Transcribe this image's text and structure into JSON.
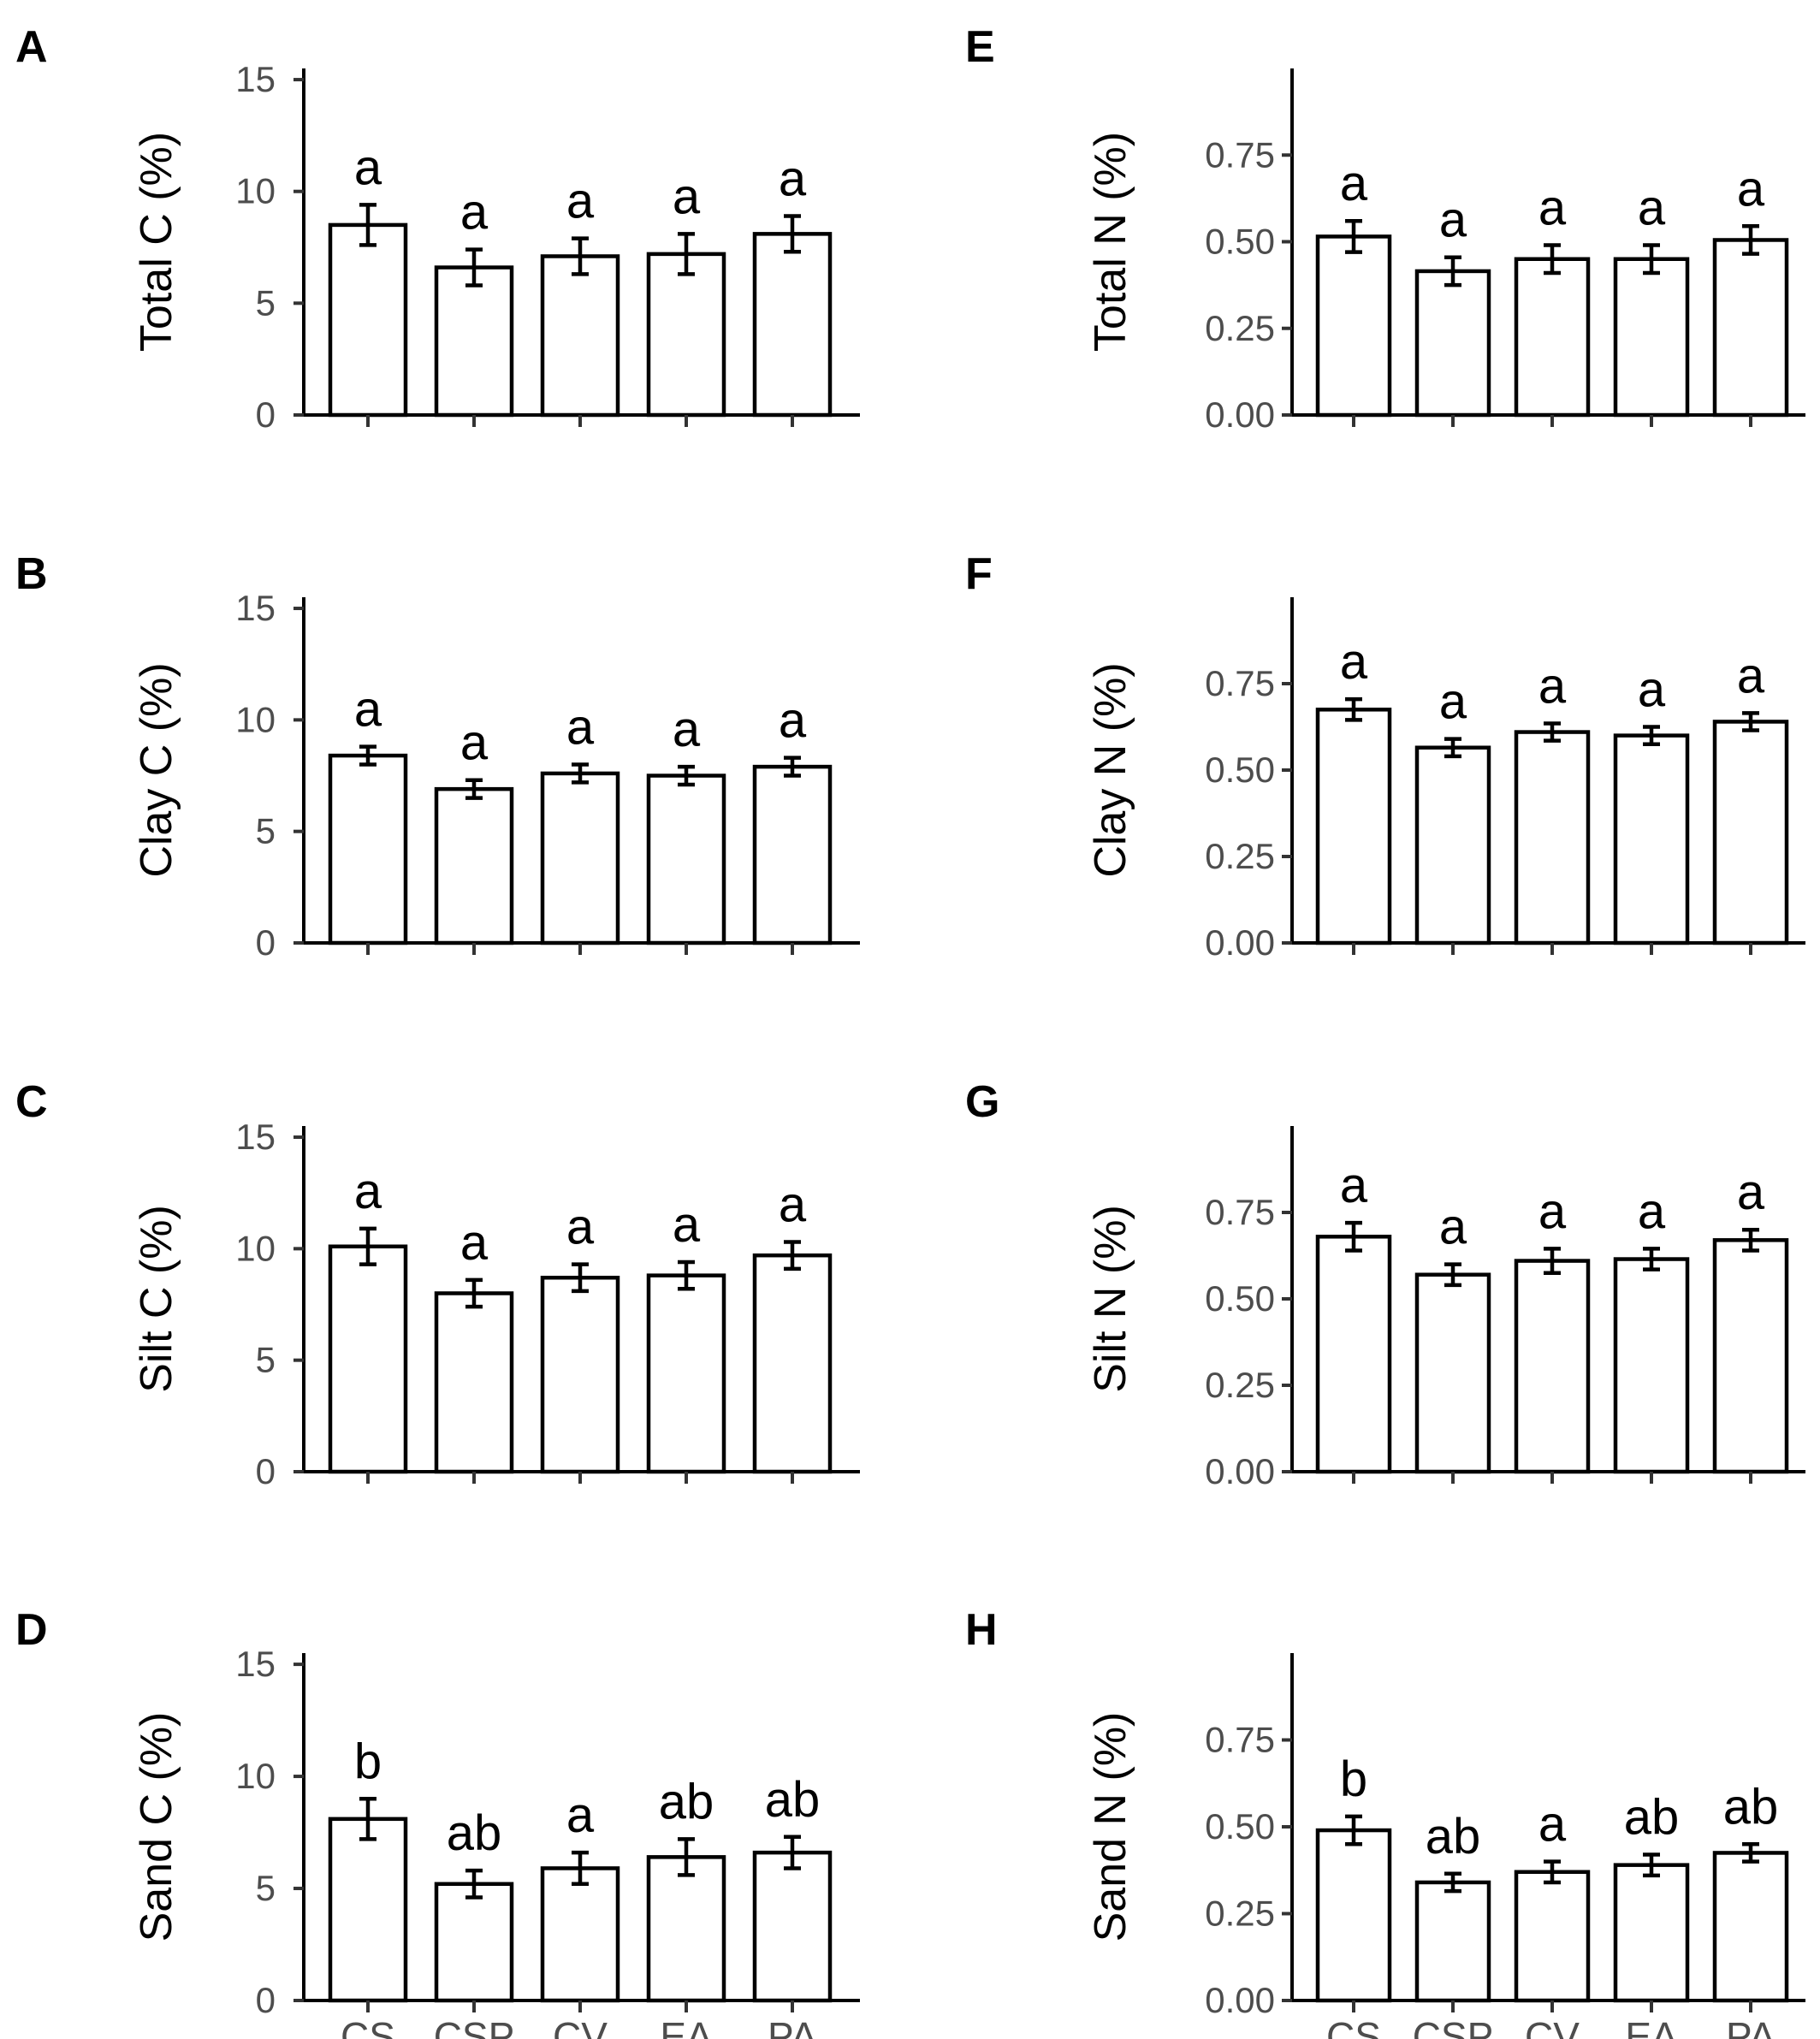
{
  "figure": {
    "colors": {
      "bar_fill": "#ffffff",
      "bar_stroke": "#000000",
      "axis": "#000000",
      "tick_text": "#4d4d4d"
    }
  },
  "chart_data": [
    {
      "panel": "A",
      "type": "bar",
      "ylabel": "Total C (%)",
      "categories": [
        "CS",
        "CSP",
        "CV",
        "EA",
        "PA"
      ],
      "show_x_labels": false,
      "values": [
        8.5,
        6.6,
        7.1,
        7.2,
        8.1
      ],
      "errors": [
        0.9,
        0.8,
        0.8,
        0.9,
        0.8
      ],
      "letters": [
        "a",
        "a",
        "a",
        "a",
        "a"
      ],
      "ylim": [
        0,
        15.5
      ],
      "yticks": [
        0,
        5,
        10,
        15
      ],
      "ytick_labels": [
        "0",
        "5",
        "10",
        "15"
      ]
    },
    {
      "panel": "B",
      "type": "bar",
      "ylabel": "Clay C (%)",
      "categories": [
        "CS",
        "CSP",
        "CV",
        "EA",
        "PA"
      ],
      "show_x_labels": false,
      "values": [
        8.4,
        6.9,
        7.6,
        7.5,
        7.9
      ],
      "errors": [
        0.4,
        0.4,
        0.4,
        0.4,
        0.4
      ],
      "letters": [
        "a",
        "a",
        "a",
        "a",
        "a"
      ],
      "ylim": [
        0,
        15.5
      ],
      "yticks": [
        0,
        5,
        10,
        15
      ],
      "ytick_labels": [
        "0",
        "5",
        "10",
        "15"
      ]
    },
    {
      "panel": "C",
      "type": "bar",
      "ylabel": "Silt C (%)",
      "categories": [
        "CS",
        "CSP",
        "CV",
        "EA",
        "PA"
      ],
      "show_x_labels": false,
      "values": [
        10.1,
        8.0,
        8.7,
        8.8,
        9.7
      ],
      "errors": [
        0.8,
        0.6,
        0.6,
        0.6,
        0.6
      ],
      "letters": [
        "a",
        "a",
        "a",
        "a",
        "a"
      ],
      "ylim": [
        0,
        15.5
      ],
      "yticks": [
        0,
        5,
        10,
        15
      ],
      "ytick_labels": [
        "0",
        "5",
        "10",
        "15"
      ]
    },
    {
      "panel": "D",
      "type": "bar",
      "ylabel": "Sand C (%)",
      "categories": [
        "CS",
        "CSP",
        "CV",
        "EA",
        "PA"
      ],
      "show_x_labels": true,
      "values": [
        8.1,
        5.2,
        5.9,
        6.4,
        6.6
      ],
      "errors": [
        0.9,
        0.6,
        0.7,
        0.8,
        0.7
      ],
      "letters": [
        "b",
        "ab",
        "a",
        "ab",
        "ab"
      ],
      "ylim": [
        0,
        15.5
      ],
      "yticks": [
        0,
        5,
        10,
        15
      ],
      "ytick_labels": [
        "0",
        "5",
        "10",
        "15"
      ]
    },
    {
      "panel": "E",
      "type": "bar",
      "ylabel": "Total N (%)",
      "categories": [
        "CS",
        "CSP",
        "CV",
        "EA",
        "PA"
      ],
      "show_x_labels": false,
      "values": [
        0.515,
        0.415,
        0.45,
        0.45,
        0.505
      ],
      "errors": [
        0.045,
        0.04,
        0.04,
        0.04,
        0.04
      ],
      "letters": [
        "a",
        "a",
        "a",
        "a",
        "a"
      ],
      "ylim": [
        0,
        1.0
      ],
      "yticks": [
        0,
        0.25,
        0.5,
        0.75
      ],
      "ytick_labels": [
        "0.00",
        "0.25",
        "0.50",
        "0.75"
      ]
    },
    {
      "panel": "F",
      "type": "bar",
      "ylabel": "Clay N (%)",
      "categories": [
        "CS",
        "CSP",
        "CV",
        "EA",
        "PA"
      ],
      "show_x_labels": false,
      "values": [
        0.675,
        0.565,
        0.61,
        0.6,
        0.64
      ],
      "errors": [
        0.03,
        0.025,
        0.025,
        0.025,
        0.025
      ],
      "letters": [
        "a",
        "a",
        "a",
        "a",
        "a"
      ],
      "ylim": [
        0,
        1.0
      ],
      "yticks": [
        0,
        0.25,
        0.5,
        0.75
      ],
      "ytick_labels": [
        "0.00",
        "0.25",
        "0.50",
        "0.75"
      ]
    },
    {
      "panel": "G",
      "type": "bar",
      "ylabel": "Silt N (%)",
      "categories": [
        "CS",
        "CSP",
        "CV",
        "EA",
        "PA"
      ],
      "show_x_labels": false,
      "values": [
        0.68,
        0.57,
        0.61,
        0.615,
        0.67
      ],
      "errors": [
        0.04,
        0.03,
        0.035,
        0.03,
        0.03
      ],
      "letters": [
        "a",
        "a",
        "a",
        "a",
        "a"
      ],
      "ylim": [
        0,
        1.0
      ],
      "yticks": [
        0,
        0.25,
        0.5,
        0.75
      ],
      "ytick_labels": [
        "0.00",
        "0.25",
        "0.50",
        "0.75"
      ]
    },
    {
      "panel": "H",
      "type": "bar",
      "ylabel": "Sand N (%)",
      "categories": [
        "CS",
        "CSP",
        "CV",
        "EA",
        "PA"
      ],
      "show_x_labels": true,
      "values": [
        0.49,
        0.34,
        0.37,
        0.39,
        0.425
      ],
      "errors": [
        0.04,
        0.025,
        0.03,
        0.03,
        0.025
      ],
      "letters": [
        "b",
        "ab",
        "a",
        "ab",
        "ab"
      ],
      "ylim": [
        0,
        1.0
      ],
      "yticks": [
        0,
        0.25,
        0.5,
        0.75
      ],
      "ytick_labels": [
        "0.00",
        "0.25",
        "0.50",
        "0.75"
      ]
    }
  ]
}
